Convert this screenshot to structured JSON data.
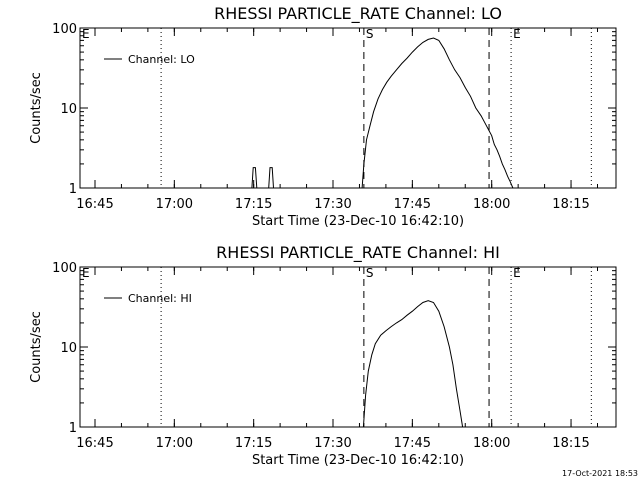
{
  "footer_timestamp": "17-Oct-2021 18:53",
  "chart_data": [
    {
      "type": "line",
      "title": "RHESSI PARTICLE_RATE Channel: LO",
      "xlabel": "Start Time (23-Dec-10 16:42:10)",
      "ylabel": "Counts/sec",
      "legend": "Channel: LO",
      "legend_position": "top-left",
      "y_scale": "log",
      "ylim": [
        1,
        100
      ],
      "xlim": [
        "16:42:10",
        "18:23:30"
      ],
      "x_ticks": [
        "16:45",
        "17:00",
        "17:15",
        "17:30",
        "17:45",
        "18:00",
        "18:15"
      ],
      "y_ticks": [
        "1",
        "10",
        "100"
      ],
      "series": [
        {
          "name": "Channel: LO",
          "x": [
            "17:14:40",
            "17:14:55",
            "17:15:20",
            "17:15:35",
            "17:17:50",
            "17:18:05",
            "17:18:30",
            "17:18:45",
            "17:35:30",
            "17:35:50",
            "17:36:20",
            "17:37:00",
            "17:37:40",
            "17:38:30",
            "17:39:20",
            "17:40:10",
            "17:41:00",
            "17:42:00",
            "17:43:00",
            "17:44:00",
            "17:45:00",
            "17:46:00",
            "17:47:00",
            "17:48:00",
            "17:49:00",
            "17:50:00",
            "17:51:00",
            "17:52:00",
            "17:53:00",
            "17:54:00",
            "17:55:00",
            "17:56:00",
            "17:57:00",
            "17:58:00",
            "17:59:00",
            "18:00:00",
            "18:00:30",
            "18:01:00",
            "18:01:30",
            "18:02:00",
            "18:02:30",
            "18:03:00",
            "18:03:30",
            "18:04:00"
          ],
          "values": [
            1,
            1.8,
            1.8,
            1,
            1,
            1.8,
            1.8,
            1,
            1,
            2,
            4,
            6,
            9,
            13,
            17,
            21,
            25,
            30,
            36,
            42,
            50,
            58,
            66,
            72,
            75,
            70,
            55,
            40,
            30,
            24,
            18,
            14,
            10,
            8,
            6,
            4.5,
            3.5,
            3,
            2.5,
            2,
            1.7,
            1.4,
            1.2,
            1
          ]
        }
      ],
      "vlines": [
        {
          "label": "",
          "style": "dotted",
          "x": "16:57:30"
        },
        {
          "label": "S",
          "style": "dashed",
          "x": "17:35:50"
        },
        {
          "label": "",
          "style": "dashed",
          "x": "17:59:30"
        },
        {
          "label": "E",
          "style": "dotted",
          "x": "18:03:40"
        },
        {
          "label": "",
          "style": "dotted",
          "x": "18:18:50"
        }
      ],
      "corner_labels": {
        "E_left": "E"
      }
    },
    {
      "type": "line",
      "title": "RHESSI PARTICLE_RATE Channel: HI",
      "xlabel": "Start Time (23-Dec-10 16:42:10)",
      "ylabel": "Counts/sec",
      "legend": "Channel: HI",
      "legend_position": "top-left",
      "y_scale": "log",
      "ylim": [
        1,
        100
      ],
      "xlim": [
        "16:42:10",
        "18:23:30"
      ],
      "x_ticks": [
        "16:45",
        "17:00",
        "17:15",
        "17:30",
        "17:45",
        "18:00",
        "18:15"
      ],
      "y_ticks": [
        "1",
        "10",
        "100"
      ],
      "series": [
        {
          "name": "Channel: HI",
          "x": [
            "17:35:45",
            "17:36:10",
            "17:36:40",
            "17:37:20",
            "17:38:00",
            "17:39:00",
            "17:40:00",
            "17:41:00",
            "17:42:00",
            "17:43:00",
            "17:44:00",
            "17:45:00",
            "17:46:00",
            "17:47:00",
            "17:48:00",
            "17:49:00",
            "17:50:00",
            "17:51:00",
            "17:52:00",
            "17:52:40",
            "17:53:20",
            "17:54:00",
            "17:54:30"
          ],
          "values": [
            1,
            2.5,
            5,
            8,
            11,
            14,
            16,
            18,
            20,
            22,
            25,
            28,
            32,
            36,
            38,
            36,
            28,
            18,
            10,
            6,
            3,
            1.6,
            1
          ]
        }
      ],
      "vlines": [
        {
          "label": "",
          "style": "dotted",
          "x": "16:57:30"
        },
        {
          "label": "S",
          "style": "dashed",
          "x": "17:35:50"
        },
        {
          "label": "",
          "style": "dashed",
          "x": "17:59:30"
        },
        {
          "label": "E",
          "style": "dotted",
          "x": "18:03:40"
        },
        {
          "label": "",
          "style": "dotted",
          "x": "18:18:50"
        }
      ],
      "corner_labels": {
        "E_left": "E"
      }
    }
  ]
}
